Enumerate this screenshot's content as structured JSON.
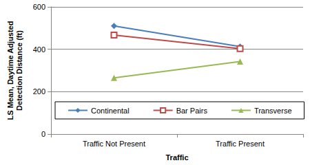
{
  "chart_data": {
    "type": "line",
    "x_label": "Traffic",
    "y_label": "LS Mean, Daytime Adjusted\nDetection Distance (ft)",
    "categories": [
      "Traffic Not Present",
      "Traffic Present"
    ],
    "series": [
      {
        "name": "Continental",
        "color": "#4a7ebb",
        "marker": "diamond",
        "values": [
          510,
          413
        ]
      },
      {
        "name": "Bar Pairs",
        "color": "#be4b48",
        "marker": "open_square",
        "values": [
          467,
          403
        ]
      },
      {
        "name": "Transverse",
        "color": "#98b954",
        "marker": "triangle",
        "values": [
          265,
          342
        ]
      }
    ],
    "ylim": [
      0,
      600
    ],
    "yticks": [
      0,
      200,
      400,
      600
    ],
    "grid": true,
    "legend": "bottom"
  }
}
